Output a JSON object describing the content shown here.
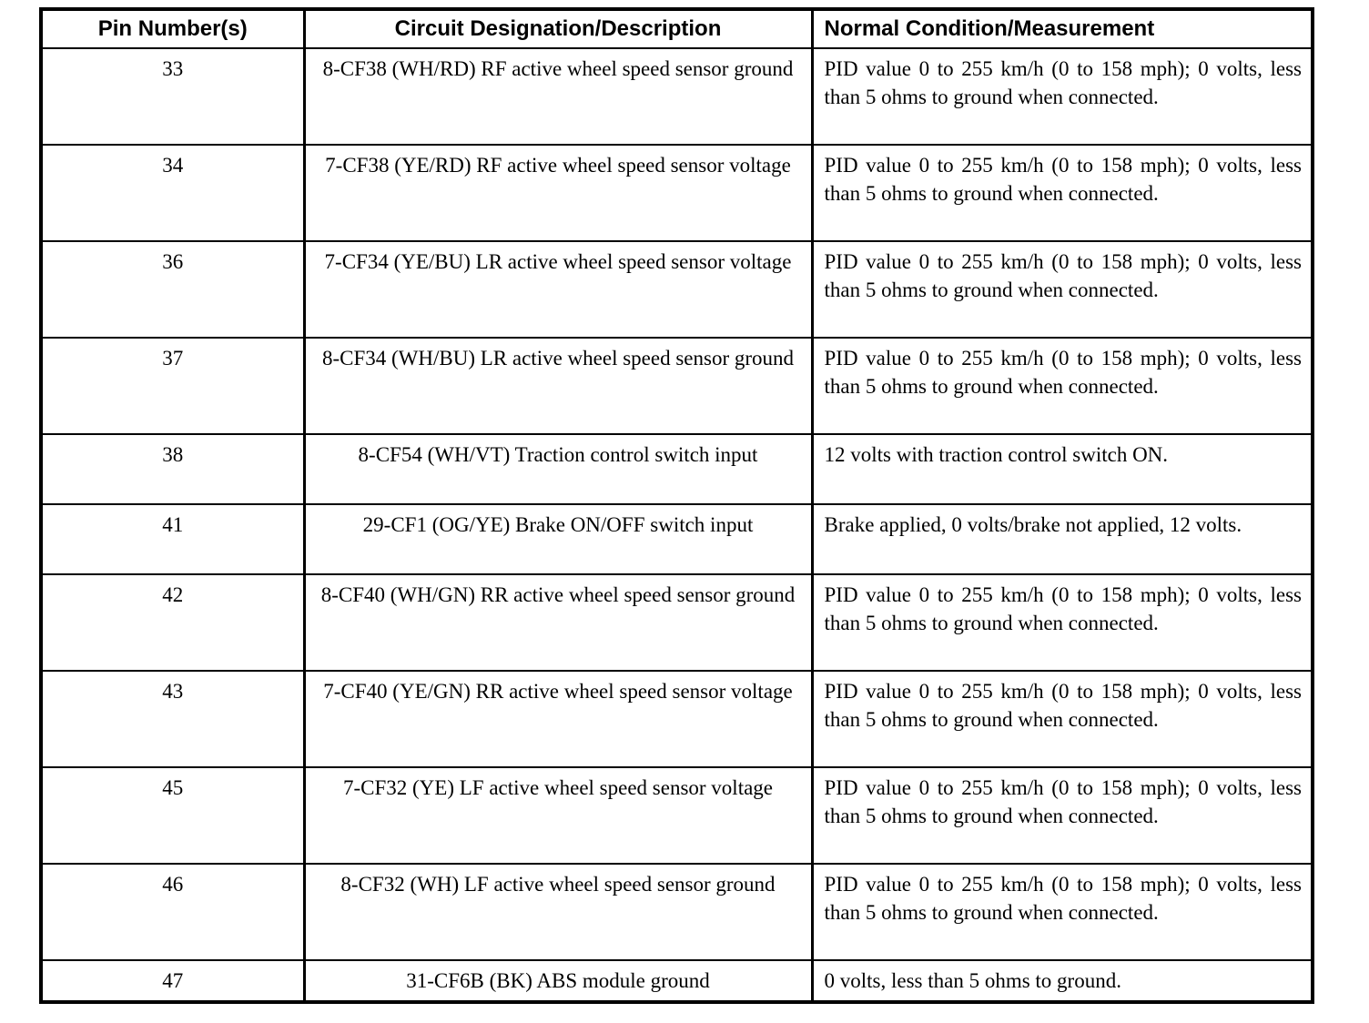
{
  "colors": {
    "text": "#000000",
    "border": "#000000",
    "background": "#ffffff"
  },
  "table": {
    "headers": [
      "Pin Number(s)",
      "Circuit Designation/Description",
      "Normal Condition/Measurement"
    ],
    "rows": [
      {
        "pin": "33",
        "circuit": "8-CF38 (WH/RD) RF active wheel speed sensor ground",
        "condition": "PID value 0 to 255 km/h (0 to 158 mph); 0 volts, less than 5 ohms to ground when connected."
      },
      {
        "pin": "34",
        "circuit": "7-CF38 (YE/RD) RF active wheel speed sensor voltage",
        "condition": "PID value 0 to 255 km/h (0 to 158 mph); 0 volts, less than 5 ohms to ground when connected."
      },
      {
        "pin": "36",
        "circuit": "7-CF34 (YE/BU) LR active wheel speed sensor voltage",
        "condition": "PID value 0 to 255 km/h (0 to 158 mph); 0 volts, less than 5 ohms to ground when connected."
      },
      {
        "pin": "37",
        "circuit": "8-CF34 (WH/BU) LR active wheel speed sensor ground",
        "condition": "PID value 0 to 255 km/h (0 to 158 mph); 0 volts, less than 5 ohms to ground when connected."
      },
      {
        "pin": "38",
        "circuit": "8-CF54 (WH/VT) Traction control switch input",
        "condition": "12 volts with traction control switch ON."
      },
      {
        "pin": "41",
        "circuit": "29-CF1 (OG/YE) Brake ON/OFF switch input",
        "condition": "Brake applied, 0 volts/brake not applied, 12 volts."
      },
      {
        "pin": "42",
        "circuit": "8-CF40 (WH/GN) RR active wheel speed sensor ground",
        "condition": "PID value 0 to 255 km/h (0 to 158 mph); 0 volts, less than 5 ohms to ground when connected."
      },
      {
        "pin": "43",
        "circuit": "7-CF40 (YE/GN) RR active wheel speed sensor voltage",
        "condition": "PID value 0 to 255 km/h (0 to 158 mph); 0 volts, less than 5 ohms to ground when connected."
      },
      {
        "pin": "45",
        "circuit": "7-CF32 (YE) LF active wheel speed sensor voltage",
        "condition": "PID value 0 to 255 km/h (0 to 158 mph); 0 volts, less than 5 ohms to ground when connected."
      },
      {
        "pin": "46",
        "circuit": "8-CF32 (WH) LF active wheel speed sensor ground",
        "condition": "PID value 0 to 255 km/h (0 to 158 mph); 0 volts, less than 5 ohms to ground when connected."
      },
      {
        "pin": "47",
        "circuit": "31-CF6B (BK) ABS module ground",
        "condition": "0 volts, less than 5 ohms to ground."
      }
    ]
  }
}
